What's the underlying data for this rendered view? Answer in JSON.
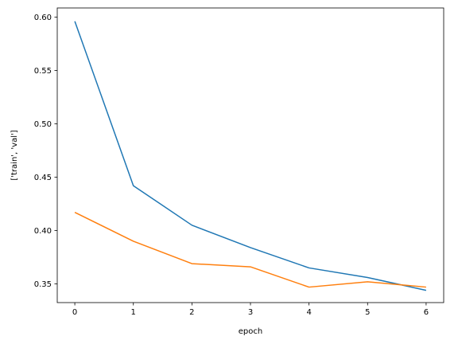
{
  "chart_data": {
    "type": "line",
    "title": "",
    "xlabel": "epoch",
    "ylabel": "['train', 'val']",
    "x": [
      0,
      1,
      2,
      3,
      4,
      5,
      6
    ],
    "xlim": [
      -0.3,
      6.3
    ],
    "ylim": [
      0.3325,
      0.6085
    ],
    "xticks": [
      0,
      1,
      2,
      3,
      4,
      5,
      6
    ],
    "yticks": [
      0.35,
      0.4,
      0.45,
      0.5,
      0.55,
      0.6
    ],
    "ytick_labels": [
      "0.35",
      "0.40",
      "0.45",
      "0.50",
      "0.55",
      "0.60"
    ],
    "grid": false,
    "legend": "none",
    "series": [
      {
        "color": "#1f77b4",
        "values": [
          0.596,
          0.442,
          0.405,
          0.384,
          0.365,
          0.356,
          0.344
        ]
      },
      {
        "color": "#ff7f0e",
        "values": [
          0.417,
          0.39,
          0.369,
          0.366,
          0.347,
          0.352,
          0.347
        ]
      }
    ]
  }
}
